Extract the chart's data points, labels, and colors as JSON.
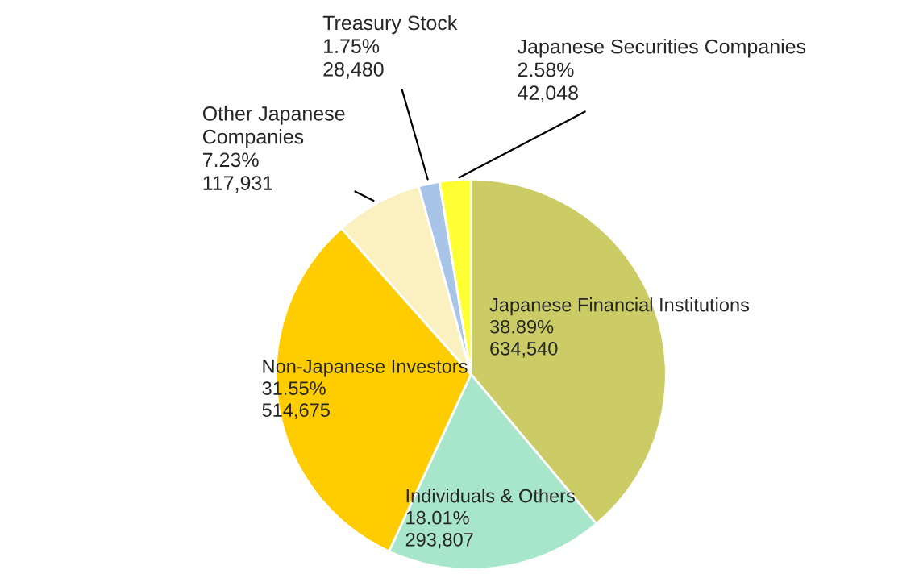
{
  "chart_data": {
    "type": "pie",
    "categories": [
      "Japanese Financial Institutions",
      "Individuals & Others",
      "Non-Japanese Investors",
      "Other Japanese\nCompanies",
      "Treasury Stock",
      "Japanese Securities Companies"
    ],
    "values": [
      634540,
      293807,
      514675,
      117931,
      28480,
      42048
    ],
    "value_labels": [
      "38.89%\n634,540",
      "18.01%\n293,807",
      "31.55%\n514,675",
      "7.23%\n117,931",
      "1.75%\n28,480",
      "2.58%\n42,048"
    ],
    "colors": [
      "#cccc66",
      "#a8e6cc",
      "#ffcc00",
      "#fbf0c0",
      "#a8c4e8",
      "#ffff33"
    ]
  }
}
